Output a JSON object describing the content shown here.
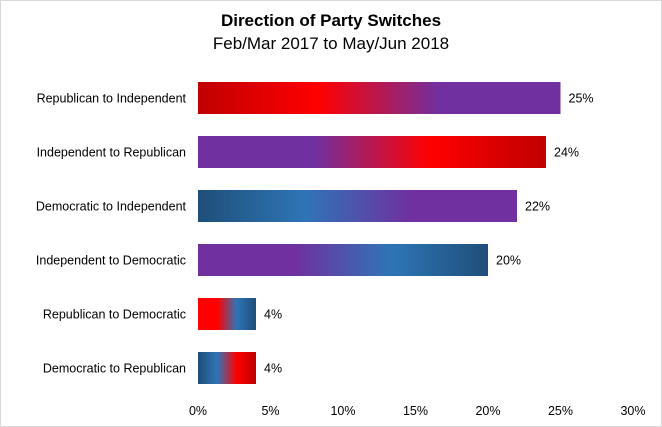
{
  "chart_data": {
    "type": "bar",
    "orientation": "horizontal",
    "title": "Direction of Party Switches",
    "subtitle": "Feb/Mar 2017 to May/Jun 2018",
    "categories": [
      "Republican to Independent",
      "Independent to Republican",
      "Democratic to Independent",
      "Independent to Democratic",
      "Republican to Democratic",
      "Democratic to Republican"
    ],
    "values": [
      25,
      24,
      22,
      20,
      4,
      4
    ],
    "value_labels": [
      "25%",
      "24%",
      "22%",
      "20%",
      "4%",
      "4%"
    ],
    "xlim": [
      0,
      30
    ],
    "x_ticks": [
      0,
      5,
      10,
      15,
      20,
      25,
      30
    ],
    "x_tick_labels": [
      "0%",
      "5%",
      "10%",
      "15%",
      "20%",
      "25%",
      "30%"
    ],
    "xlabel": "",
    "ylabel": "",
    "grid": false,
    "legend": "none",
    "colors": {
      "republican": "#ff0000",
      "republican_dark": "#c00000",
      "democratic": "#2e75b6",
      "democratic_dark": "#1f4e79",
      "independent": "#7030a0"
    },
    "bar_gradients": [
      [
        "republican_dark",
        "republican",
        "independent",
        "independent"
      ],
      [
        "independent",
        "independent",
        "republican",
        "republican_dark"
      ],
      [
        "democratic_dark",
        "democratic",
        "independent",
        "independent"
      ],
      [
        "independent",
        "independent",
        "democratic",
        "democratic_dark"
      ],
      [
        "republican",
        "republican",
        "democratic",
        "democratic_dark"
      ],
      [
        "democratic_dark",
        "democratic",
        "republican",
        "republican_dark"
      ]
    ]
  }
}
